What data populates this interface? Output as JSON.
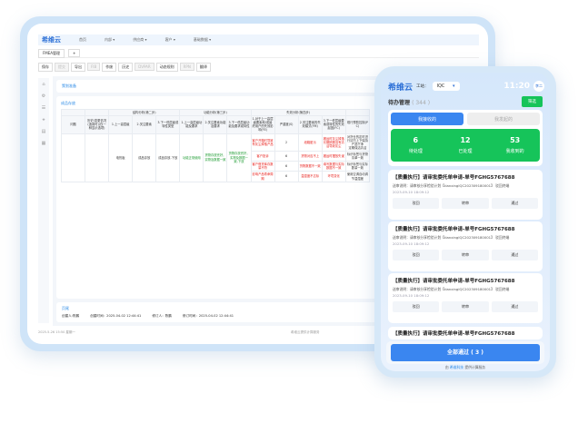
{
  "tablet": {
    "logo": "希维云",
    "nav": [
      "首页",
      "内部 ▾",
      "供应商 ▾",
      "客户 ▾",
      "基础数据 ▾"
    ],
    "tab": "FMEA管理",
    "toolbar": [
      {
        "l": "保存",
        "d": false
      },
      {
        "l": "提交",
        "d": true
      },
      {
        "l": "导出",
        "d": false
      },
      {
        "l": "FIB",
        "d": true
      },
      {
        "l": "作废",
        "d": false
      },
      {
        "l": "历史",
        "d": false
      },
      {
        "l": "DVPAR",
        "d": true
      },
      {
        "l": "动态规则",
        "d": false
      },
      {
        "l": "RPN",
        "d": true
      },
      {
        "l": "翻译",
        "d": false
      }
    ],
    "section1": "策划准备",
    "section2": "成品存放",
    "groups": [
      "",
      "",
      "结构分析(第二步)",
      "功能分析(第三步)",
      "失效分析(第四步)",
      ""
    ],
    "headers": [
      "问题",
      "历史/变更情况(适用时)(仅一种显示选项)",
      "1.上一高层级",
      "2.关注要素",
      "3.下一低层级或特性类型",
      "1.上一高层级功能及要求",
      "2.关注要素功能及要求",
      "3.下一低层级功能及要求或特性",
      "1.对于上一高层级要素和/或最终用户的失效影响(FE)",
      "严重度(S)",
      "2.关注要素的失效模式(FM)",
      "3.下一低层级要素或特性的失效起因(FC)",
      "现行预防控制(PC)"
    ],
    "row": {
      "c1": "电热板",
      "c2": "成品存放",
      "c3": "成品存放-下放",
      "f1": "功能正常使用",
      "f2": "货物存放完好，实物及数据一致",
      "f3": "货物存放完好，实物及数据一致-下放"
    },
    "fails": [
      {
        "fe": "客户开箱时导致有灰尘掉落产品",
        "s": "2",
        "fm": "纸箱脏污",
        "fc": [
          "搬运时灰尘掉落",
          "长期搁置没有清洁导致灰尘"
        ],
        "pc": [
          "对货仓的定时进行清扫上下保持产品干净",
          "定期保洁清洁"
        ]
      },
      {
        "fe": "客户投诉",
        "s": "6",
        "fm": "货物对应不上",
        "fc": [
          "搬运时摆放失误"
        ],
        "pc": [
          "标识标签与货物清单一致"
        ]
      },
      {
        "fe": "客户借货库存数量不符",
        "s": "6",
        "fm": "货物数据不一致",
        "fc": [
          "填写数据与实际数据不一致"
        ],
        "pc": [
          "标识标签与实际数量一致"
        ]
      },
      {
        "fe": "影响产品寿命周期",
        "s": "6",
        "fm": "温湿度不达标",
        "fc": [
          "环境变化"
        ],
        "pc": [
          "使用空调自动调节温湿度"
        ]
      }
    ],
    "section3": "页尾",
    "meta": [
      "创建人:陈鹏",
      "创建时间：2025-04-02 12:44:41",
      "修订人：陈鹏",
      "修订时间：2025-04-02 12:44:41"
    ],
    "status_left": "2025-5-26 15:50 星期一",
    "status_right": "希维云提供计算服务"
  },
  "phone": {
    "logo": "希维云",
    "station_label": "工站：",
    "station": "IQC",
    "time": "11:20",
    "avatar": "李二",
    "title": "待办管理",
    "count": "( 344 )",
    "filter": "筛选",
    "seg": [
      "我接收的",
      "我发起的"
    ],
    "stats": [
      {
        "n": "6",
        "l": "待处理"
      },
      {
        "n": "12",
        "l": "已处理"
      },
      {
        "n": "53",
        "l": "我收到的"
      }
    ],
    "items": [
      {
        "h": "【质量执行】请审批委托单申请-单号FGHG5767688",
        "d": "送审说明：请审核分享检验计划【tianxingIQC202309180001】 驳回终端",
        "t": "2023-09-10 18:09:12"
      },
      {
        "h": "【质量执行】请审批委托单申请-单号FGHG5767688",
        "d": "送审说明：请审核分享检验计划【tianxingIQC202309180001】 驳回终端",
        "t": "2023-09-10 18:09:12"
      },
      {
        "h": "【质量执行】请审批委托单申请-单号FGHG5767688",
        "d": "送审说明：请审核分享检验计划【tianxingIQC202309180001】 驳回终端",
        "t": "2023-09-10 18:09:12"
      }
    ],
    "actions": [
      "驳回",
      "转审",
      "通过"
    ],
    "all_pass": "全部通过 ( 3 )",
    "footer_a": "由",
    "footer_brand": "希维科技",
    "footer_b": "提供计算服务",
    "colors": {
      "green": "#16c45a",
      "blue": "#3a86f0",
      "red": "#e8231f"
    }
  }
}
